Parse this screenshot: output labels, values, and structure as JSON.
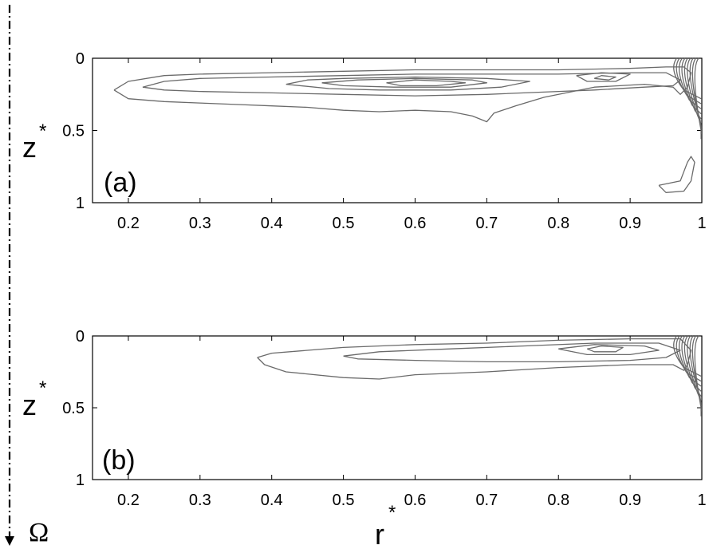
{
  "figure": {
    "axis_symbol": "Ω",
    "colors": {
      "axes": "#000000",
      "contour": "#6a6a6a",
      "background": "#ffffff"
    }
  },
  "chart_data": [
    {
      "type": "contour",
      "panel_label": "(a)",
      "xlabel": "",
      "ylabel": "z",
      "ylabel_superscript": "*",
      "xlim": [
        0.15,
        1.0
      ],
      "ylim": [
        1,
        0
      ],
      "y_inverted": true,
      "xticks": [
        0.2,
        0.3,
        0.4,
        0.5,
        0.6,
        0.7,
        0.8,
        0.9,
        1
      ],
      "xtick_labels": [
        "0.2",
        "0.3",
        "0.4",
        "0.5",
        "0.6",
        "0.7",
        "0.8",
        "0.9",
        "1"
      ],
      "yticks": [
        0,
        0.5,
        1
      ],
      "ytick_labels": [
        "0",
        "0.5",
        "1"
      ],
      "contours": [
        {
          "level": 1,
          "points": [
            [
              0.18,
              0.22
            ],
            [
              0.2,
              0.16
            ],
            [
              0.25,
              0.12
            ],
            [
              0.3,
              0.11
            ],
            [
              0.4,
              0.1
            ],
            [
              0.5,
              0.09
            ],
            [
              0.6,
              0.08
            ],
            [
              0.7,
              0.08
            ],
            [
              0.8,
              0.08
            ],
            [
              0.9,
              0.07
            ],
            [
              0.95,
              0.06
            ],
            [
              0.975,
              0.06
            ],
            [
              0.985,
              0.1
            ],
            [
              0.98,
              0.2
            ],
            [
              0.97,
              0.25
            ],
            [
              0.96,
              0.2
            ],
            [
              0.92,
              0.18
            ],
            [
              0.85,
              0.2
            ],
            [
              0.78,
              0.27
            ],
            [
              0.74,
              0.33
            ],
            [
              0.71,
              0.38
            ],
            [
              0.7,
              0.44
            ],
            [
              0.68,
              0.4
            ],
            [
              0.65,
              0.37
            ],
            [
              0.6,
              0.36
            ],
            [
              0.55,
              0.37
            ],
            [
              0.5,
              0.36
            ],
            [
              0.45,
              0.34
            ],
            [
              0.4,
              0.33
            ],
            [
              0.35,
              0.32
            ],
            [
              0.3,
              0.31
            ],
            [
              0.25,
              0.3
            ],
            [
              0.2,
              0.28
            ],
            [
              0.18,
              0.22
            ]
          ]
        },
        {
          "level": 2,
          "points": [
            [
              0.22,
              0.2
            ],
            [
              0.25,
              0.16
            ],
            [
              0.3,
              0.14
            ],
            [
              0.4,
              0.13
            ],
            [
              0.5,
              0.12
            ],
            [
              0.6,
              0.11
            ],
            [
              0.7,
              0.11
            ],
            [
              0.8,
              0.11
            ],
            [
              0.9,
              0.1
            ],
            [
              0.95,
              0.1
            ],
            [
              0.97,
              0.15
            ],
            [
              0.96,
              0.19
            ],
            [
              0.92,
              0.2
            ],
            [
              0.85,
              0.22
            ],
            [
              0.8,
              0.23
            ],
            [
              0.7,
              0.25
            ],
            [
              0.6,
              0.26
            ],
            [
              0.5,
              0.25
            ],
            [
              0.4,
              0.24
            ],
            [
              0.3,
              0.23
            ],
            [
              0.25,
              0.22
            ],
            [
              0.22,
              0.2
            ]
          ]
        },
        {
          "level": 3,
          "points": [
            [
              0.42,
              0.18
            ],
            [
              0.45,
              0.15
            ],
            [
              0.5,
              0.14
            ],
            [
              0.6,
              0.13
            ],
            [
              0.7,
              0.14
            ],
            [
              0.76,
              0.16
            ],
            [
              0.72,
              0.2
            ],
            [
              0.65,
              0.22
            ],
            [
              0.55,
              0.22
            ],
            [
              0.48,
              0.21
            ],
            [
              0.42,
              0.18
            ]
          ]
        },
        {
          "level": 4,
          "points": [
            [
              0.47,
              0.17
            ],
            [
              0.52,
              0.15
            ],
            [
              0.6,
              0.14
            ],
            [
              0.68,
              0.15
            ],
            [
              0.7,
              0.17
            ],
            [
              0.65,
              0.2
            ],
            [
              0.57,
              0.2
            ],
            [
              0.5,
              0.19
            ],
            [
              0.47,
              0.17
            ]
          ]
        },
        {
          "level": 5,
          "points": [
            [
              0.56,
              0.17
            ],
            [
              0.6,
              0.15
            ],
            [
              0.65,
              0.16
            ],
            [
              0.67,
              0.17
            ],
            [
              0.63,
              0.19
            ],
            [
              0.58,
              0.19
            ],
            [
              0.56,
              0.17
            ]
          ]
        },
        {
          "level": 6,
          "points": [
            [
              0.825,
              0.12
            ],
            [
              0.86,
              0.1
            ],
            [
              0.9,
              0.11
            ],
            [
              0.88,
              0.16
            ],
            [
              0.84,
              0.16
            ],
            [
              0.825,
              0.12
            ]
          ]
        },
        {
          "level": 7,
          "points": [
            [
              0.85,
              0.14
            ],
            [
              0.86,
              0.12
            ],
            [
              0.88,
              0.13
            ],
            [
              0.87,
              0.15
            ],
            [
              0.85,
              0.14
            ]
          ]
        },
        {
          "level": 8,
          "points": [
            [
              0.94,
              0.88
            ],
            [
              0.97,
              0.85
            ],
            [
              0.98,
              0.72
            ],
            [
              0.985,
              0.68
            ],
            [
              0.99,
              0.72
            ],
            [
              0.985,
              0.85
            ],
            [
              0.975,
              0.92
            ],
            [
              0.95,
              0.93
            ],
            [
              0.94,
              0.88
            ]
          ]
        }
      ]
    },
    {
      "type": "contour",
      "panel_label": "(b)",
      "xlabel": "r",
      "xlabel_superscript": "*",
      "ylabel": "z",
      "ylabel_superscript": "*",
      "xlim": [
        0.15,
        1.0
      ],
      "ylim": [
        1,
        0
      ],
      "y_inverted": true,
      "xticks": [
        0.2,
        0.3,
        0.4,
        0.5,
        0.6,
        0.7,
        0.8,
        0.9,
        1
      ],
      "xtick_labels": [
        "0.2",
        "0.3",
        "0.4",
        "0.5",
        "0.6",
        "0.7",
        "0.8",
        "0.9",
        "1"
      ],
      "yticks": [
        0,
        0.5,
        1
      ],
      "ytick_labels": [
        "0",
        "0.5",
        "1"
      ],
      "contours": [
        {
          "level": 1,
          "points": [
            [
              0.38,
              0.15
            ],
            [
              0.4,
              0.12
            ],
            [
              0.5,
              0.08
            ],
            [
              0.6,
              0.06
            ],
            [
              0.7,
              0.05
            ],
            [
              0.8,
              0.03
            ],
            [
              0.9,
              0.02
            ],
            [
              0.97,
              0.02
            ],
            [
              0.985,
              0.1
            ],
            [
              0.98,
              0.2
            ],
            [
              0.975,
              0.24
            ],
            [
              0.96,
              0.2
            ],
            [
              0.9,
              0.2
            ],
            [
              0.8,
              0.22
            ],
            [
              0.7,
              0.25
            ],
            [
              0.6,
              0.27
            ],
            [
              0.55,
              0.3
            ],
            [
              0.5,
              0.29
            ],
            [
              0.42,
              0.25
            ],
            [
              0.39,
              0.2
            ],
            [
              0.38,
              0.15
            ]
          ]
        },
        {
          "level": 2,
          "points": [
            [
              0.5,
              0.14
            ],
            [
              0.55,
              0.11
            ],
            [
              0.65,
              0.09
            ],
            [
              0.75,
              0.07
            ],
            [
              0.85,
              0.05
            ],
            [
              0.94,
              0.05
            ],
            [
              0.97,
              0.1
            ],
            [
              0.95,
              0.15
            ],
            [
              0.9,
              0.17
            ],
            [
              0.8,
              0.18
            ],
            [
              0.7,
              0.18
            ],
            [
              0.6,
              0.17
            ],
            [
              0.52,
              0.16
            ],
            [
              0.5,
              0.14
            ]
          ]
        },
        {
          "level": 3,
          "points": [
            [
              0.8,
              0.09
            ],
            [
              0.85,
              0.06
            ],
            [
              0.92,
              0.07
            ],
            [
              0.94,
              0.1
            ],
            [
              0.9,
              0.13
            ],
            [
              0.84,
              0.13
            ],
            [
              0.8,
              0.09
            ]
          ]
        },
        {
          "level": 4,
          "points": [
            [
              0.84,
              0.09
            ],
            [
              0.86,
              0.07
            ],
            [
              0.89,
              0.08
            ],
            [
              0.88,
              0.11
            ],
            [
              0.85,
              0.11
            ],
            [
              0.84,
              0.09
            ]
          ]
        }
      ]
    }
  ]
}
